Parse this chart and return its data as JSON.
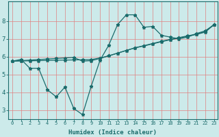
{
  "xlabel": "Humidex (Indice chaleur)",
  "bg_color": "#cceaea",
  "line_color": "#1a6b6b",
  "grid_color": "#aad0d0",
  "xlim": [
    -0.5,
    23.4
  ],
  "ylim": [
    2.5,
    9.1
  ],
  "yticks": [
    3,
    4,
    5,
    6,
    7,
    8
  ],
  "xticks": [
    0,
    1,
    2,
    3,
    4,
    5,
    6,
    7,
    8,
    9,
    10,
    11,
    12,
    13,
    14,
    15,
    16,
    17,
    18,
    19,
    20,
    21,
    22,
    23
  ],
  "line1_x": [
    0,
    1,
    2,
    3,
    4,
    5,
    6,
    7,
    8,
    9,
    10,
    11,
    12,
    13,
    14,
    15,
    16,
    17,
    18,
    19,
    20,
    21,
    22,
    23
  ],
  "line1_y": [
    5.75,
    5.85,
    5.35,
    5.35,
    4.15,
    3.75,
    4.3,
    3.1,
    2.75,
    4.35,
    5.8,
    6.65,
    7.8,
    8.35,
    8.35,
    7.65,
    7.7,
    7.2,
    7.1,
    7.0,
    7.1,
    7.3,
    7.45,
    7.8
  ],
  "line2_x": [
    0,
    1,
    2,
    3,
    4,
    5,
    6,
    7,
    8,
    9,
    10,
    11,
    12,
    13,
    14,
    15,
    16,
    17,
    18,
    19,
    20,
    21,
    22,
    23
  ],
  "line2_y": [
    5.75,
    5.78,
    5.81,
    5.84,
    5.87,
    5.9,
    5.93,
    5.96,
    5.75,
    5.78,
    5.9,
    6.05,
    6.2,
    6.35,
    6.5,
    6.6,
    6.72,
    6.84,
    6.95,
    7.05,
    7.15,
    7.25,
    7.38,
    7.8
  ],
  "line3_x": [
    0,
    1,
    2,
    3,
    4,
    5,
    6,
    7,
    8,
    9,
    10,
    11,
    12,
    13,
    14,
    15,
    16,
    17,
    18,
    19,
    20,
    21,
    22,
    23
  ],
  "line3_y": [
    5.75,
    5.76,
    5.77,
    5.78,
    5.79,
    5.8,
    5.81,
    5.82,
    5.83,
    5.84,
    5.93,
    6.05,
    6.2,
    6.35,
    6.5,
    6.62,
    6.74,
    6.86,
    6.97,
    7.07,
    7.17,
    7.27,
    7.4,
    7.8
  ],
  "xtick_fontsize": 5.0,
  "ytick_fontsize": 6.5,
  "xlabel_fontsize": 6.5
}
